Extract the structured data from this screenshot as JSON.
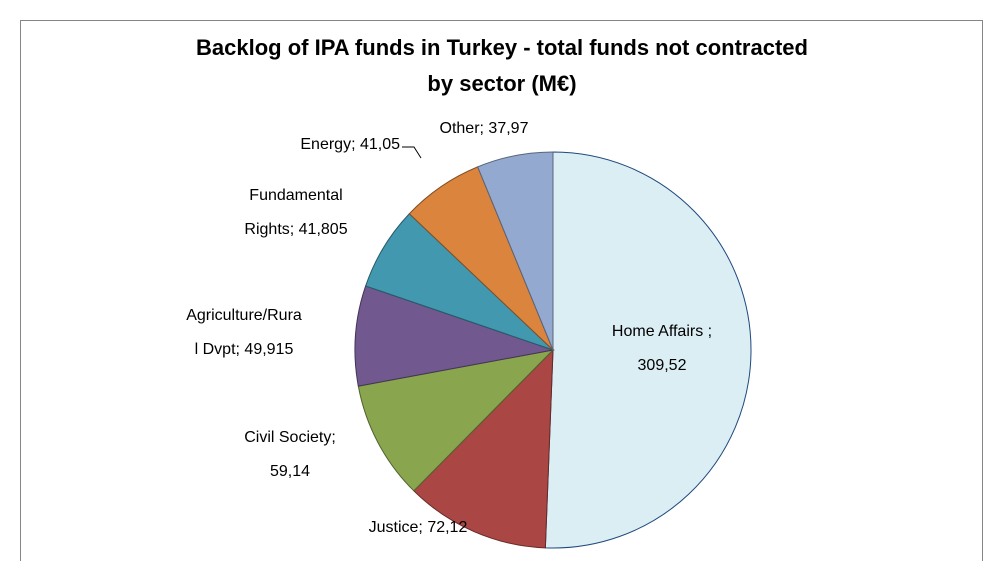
{
  "chart_data": {
    "type": "pie",
    "title": [
      "Backlog of IPA funds in Turkey - total funds not contracted",
      "by sector (M€)"
    ],
    "labels": [
      [
        "Home Affairs ;",
        "309,52"
      ],
      [
        "Justice; 72,12"
      ],
      [
        "Civil Society;",
        "59,14"
      ],
      [
        "Agriculture/Rura",
        "l Dvpt; 49,915"
      ],
      [
        "Fundamental",
        "Rights; 41,805"
      ],
      [
        "Energy; 41,05"
      ],
      [
        "Other; 37,97"
      ]
    ],
    "values": [
      309.52,
      72.12,
      59.14,
      49.915,
      41.805,
      41.05,
      37.97
    ],
    "colors": [
      "#dbeef4",
      "#aa4643",
      "#89a54e",
      "#71588f",
      "#4198af",
      "#db843d",
      "#93a9cf"
    ]
  }
}
